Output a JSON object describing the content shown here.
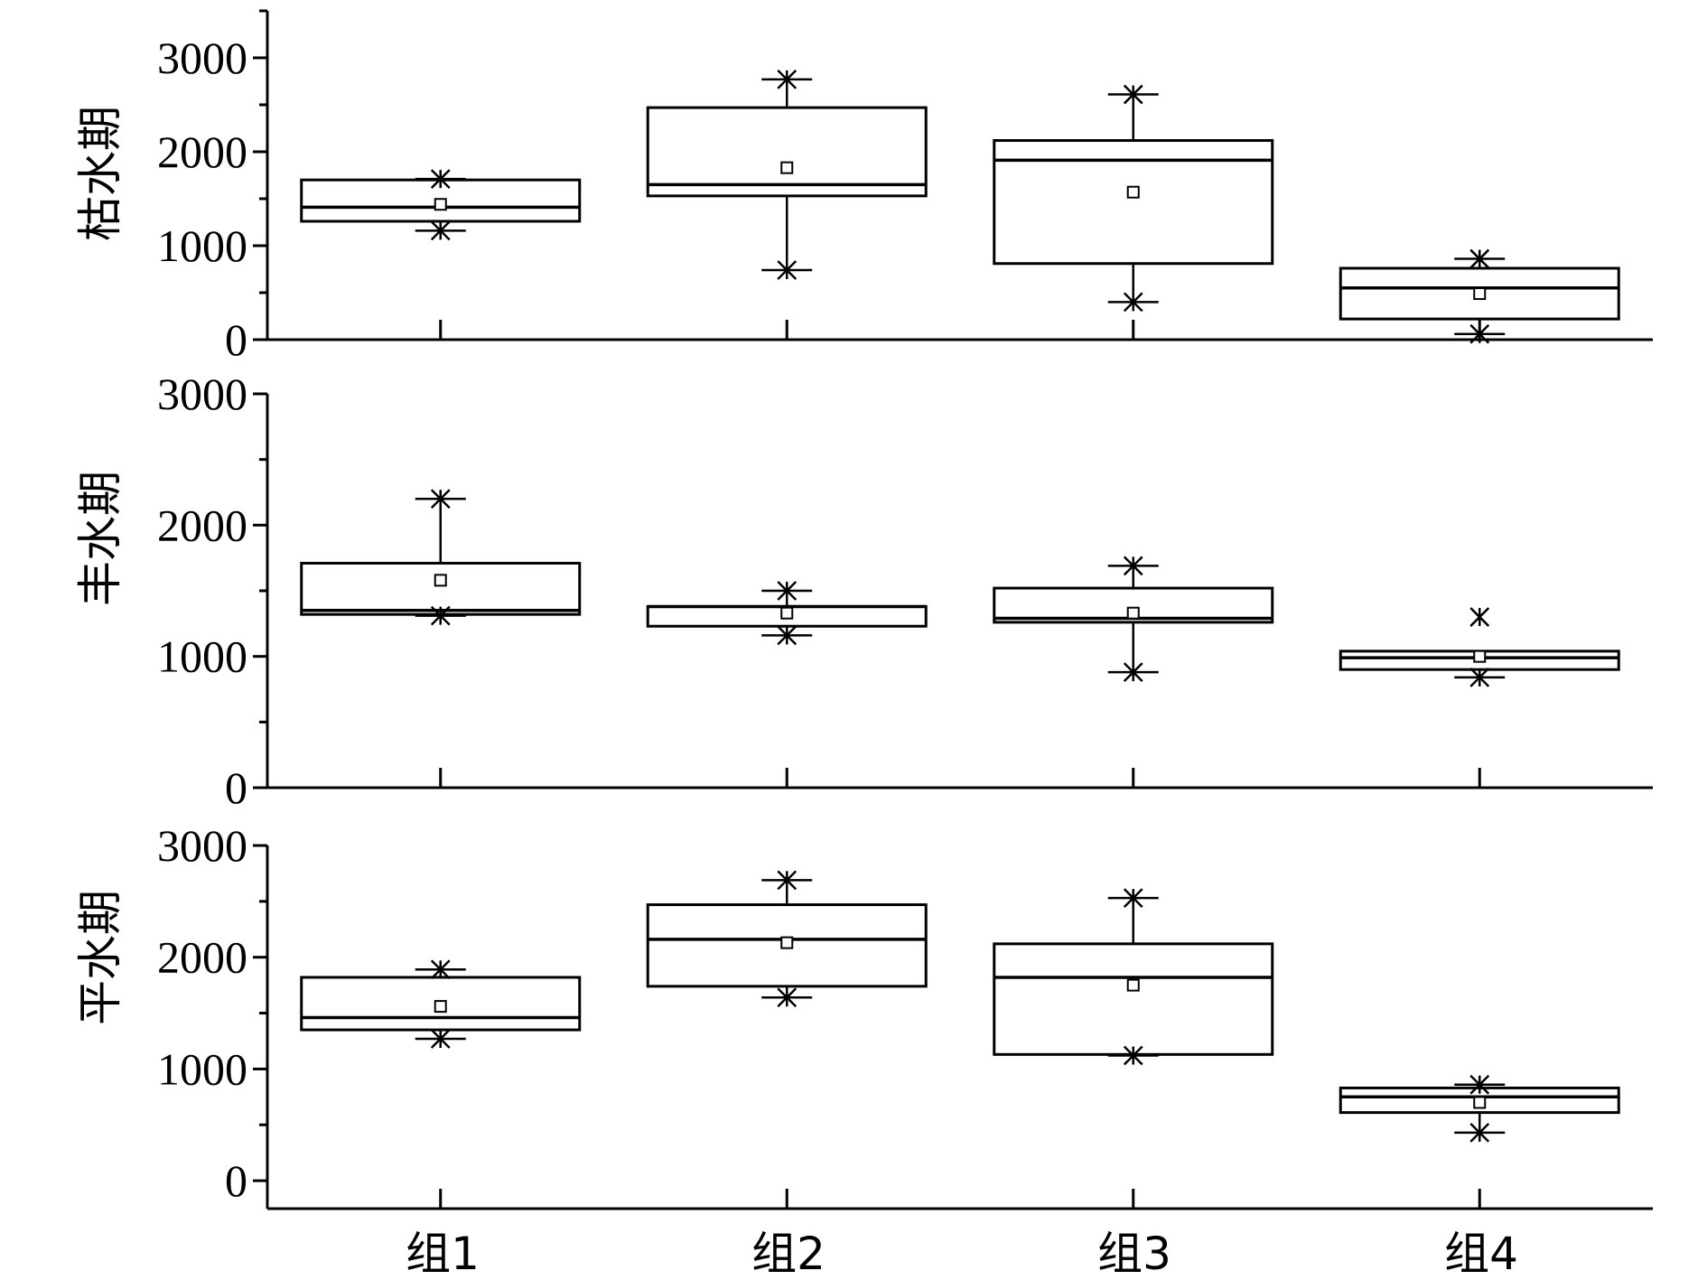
{
  "chart_data": {
    "type": "box",
    "categories": [
      "组1",
      "组2",
      "组3",
      "组4"
    ],
    "panels": [
      {
        "label": "枯水期",
        "ylim": [
          0,
          3500
        ],
        "yticks": [
          0,
          1000,
          2000,
          3000
        ],
        "boxes": [
          {
            "category": "组1",
            "q1": 1260,
            "median": 1410,
            "q3": 1700,
            "mean": 1440,
            "whisker_low": 1160,
            "whisker_high": 1710,
            "min": 1160,
            "max": 1710
          },
          {
            "category": "组2",
            "q1": 1530,
            "median": 1650,
            "q3": 2470,
            "mean": 1830,
            "whisker_low": 740,
            "whisker_high": 2770,
            "min": 740,
            "max": 2770
          },
          {
            "category": "组3",
            "q1": 810,
            "median": 1910,
            "q3": 2120,
            "mean": 1570,
            "whisker_low": 400,
            "whisker_high": 2610,
            "min": 400,
            "max": 2610
          },
          {
            "category": "组4",
            "q1": 220,
            "median": 550,
            "q3": 760,
            "mean": 490,
            "whisker_low": 60,
            "whisker_high": 860,
            "min": 60,
            "max": 860
          }
        ]
      },
      {
        "label": "丰水期",
        "ylim": [
          0,
          3000
        ],
        "yticks": [
          0,
          1000,
          2000,
          3000
        ],
        "boxes": [
          {
            "category": "组1",
            "q1": 1320,
            "median": 1350,
            "q3": 1710,
            "mean": 1580,
            "whisker_low": 1310,
            "whisker_high": 2200,
            "min": 1310,
            "max": 2200
          },
          {
            "category": "组2",
            "q1": 1230,
            "median": 1380,
            "q3": 1380,
            "mean": 1330,
            "whisker_low": 1160,
            "whisker_high": 1500,
            "min": 1160,
            "max": 1500
          },
          {
            "category": "组3",
            "q1": 1260,
            "median": 1290,
            "q3": 1520,
            "mean": 1330,
            "whisker_low": 880,
            "whisker_high": 1690,
            "min": 880,
            "max": 1690
          },
          {
            "category": "组4",
            "q1": 900,
            "median": 990,
            "q3": 1040,
            "mean": 1000,
            "whisker_low": 840,
            "whisker_high": 1040,
            "min": 840,
            "max": 1300
          }
        ]
      },
      {
        "label": "平水期",
        "ylim": [
          -250,
          3000
        ],
        "yticks": [
          0,
          1000,
          2000,
          3000
        ],
        "boxes": [
          {
            "category": "组1",
            "q1": 1350,
            "median": 1460,
            "q3": 1820,
            "mean": 1560,
            "whisker_low": 1270,
            "whisker_high": 1890,
            "min": 1270,
            "max": 1890
          },
          {
            "category": "组2",
            "q1": 1740,
            "median": 2160,
            "q3": 2470,
            "mean": 2130,
            "whisker_low": 1640,
            "whisker_high": 2690,
            "min": 1640,
            "max": 2690
          },
          {
            "category": "组3",
            "q1": 1130,
            "median": 1820,
            "q3": 2120,
            "mean": 1750,
            "whisker_low": 1120,
            "whisker_high": 2530,
            "min": 1120,
            "max": 2530
          },
          {
            "category": "组4",
            "q1": 610,
            "median": 750,
            "q3": 830,
            "mean": 700,
            "whisker_low": 430,
            "whisker_high": 860,
            "min": 430,
            "max": 860
          }
        ]
      }
    ],
    "grid": false,
    "legend": "none"
  }
}
